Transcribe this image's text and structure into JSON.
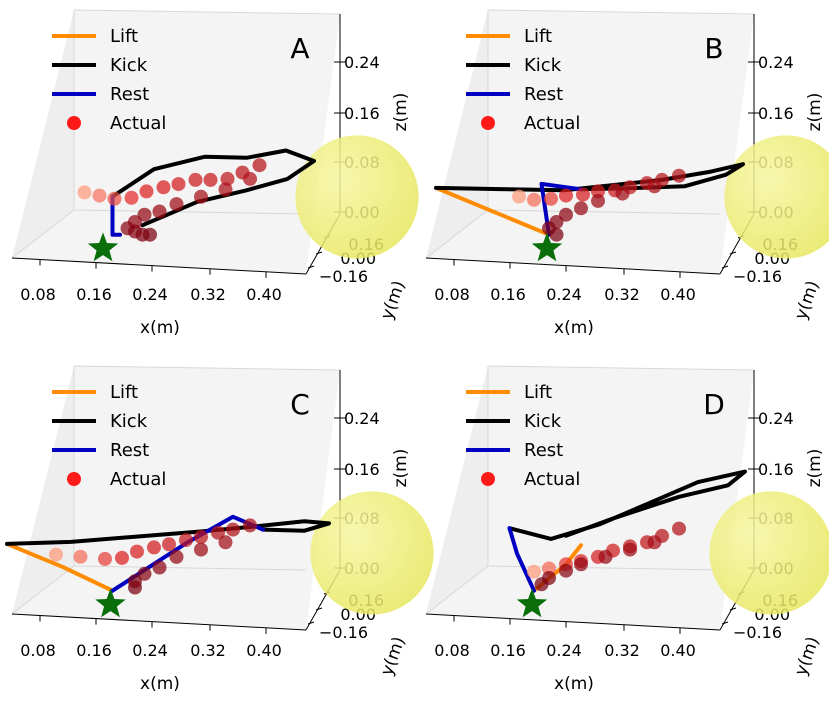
{
  "figure": {
    "panels": [
      "A",
      "B",
      "C",
      "D"
    ],
    "colors": {
      "lift": "#ff8c00",
      "kick": "#000000",
      "rest": "#0000c0",
      "actual": "#ff1a1a",
      "ball": "#e6e65c",
      "start": "#0a6e0a"
    }
  },
  "chart_data": [
    {
      "type": "scatter",
      "panel_letter": "A",
      "xlabel": "x(m)",
      "ylabel": "y(m)",
      "zlabel": "z(m)",
      "xticks": [
        "0.08",
        "0.16",
        "0.24",
        "0.32",
        "0.40"
      ],
      "yticks": [
        "0.16",
        "0.00",
        "−0.16"
      ],
      "zticks": [
        "0.24",
        "0.16",
        "0.08",
        "0.00"
      ],
      "legend": [
        "Lift",
        "Kick",
        "Rest",
        "Actual"
      ],
      "series": {
        "lift": [
          [
            0.2,
            -0.02,
            -0.02
          ],
          [
            0.2,
            -0.02,
            -0.02
          ]
        ],
        "kick": [
          [
            0.19,
            -0.02,
            0.04
          ],
          [
            0.24,
            0.0,
            0.08
          ],
          [
            0.3,
            0.03,
            0.095
          ],
          [
            0.35,
            0.05,
            0.09
          ],
          [
            0.4,
            0.06,
            0.1
          ],
          [
            0.44,
            0.05,
            0.085
          ],
          [
            0.41,
            0.03,
            0.06
          ],
          [
            0.36,
            0.01,
            0.045
          ],
          [
            0.3,
            -0.01,
            0.03
          ],
          [
            0.26,
            -0.02,
            0.01
          ],
          [
            0.23,
            -0.02,
            -0.005
          ]
        ],
        "rest": [
          [
            0.19,
            -0.02,
            0.04
          ],
          [
            0.19,
            -0.02,
            -0.02
          ],
          [
            0.2,
            -0.02,
            -0.02
          ]
        ],
        "actual": [
          [
            0.15,
            -0.01,
            0.045
          ],
          [
            0.17,
            -0.01,
            0.04
          ],
          [
            0.19,
            -0.01,
            0.035
          ],
          [
            0.21,
            0.0,
            0.035
          ],
          [
            0.23,
            0.0,
            0.045
          ],
          [
            0.25,
            0.01,
            0.05
          ],
          [
            0.27,
            0.01,
            0.055
          ],
          [
            0.29,
            0.02,
            0.06
          ],
          [
            0.31,
            0.02,
            0.06
          ],
          [
            0.33,
            0.03,
            0.06
          ],
          [
            0.35,
            0.03,
            0.07
          ],
          [
            0.37,
            0.04,
            0.08
          ],
          [
            0.36,
            0.03,
            0.06
          ],
          [
            0.33,
            0.02,
            0.045
          ],
          [
            0.3,
            0.01,
            0.035
          ],
          [
            0.27,
            0.0,
            0.025
          ],
          [
            0.25,
            -0.01,
            0.015
          ],
          [
            0.23,
            -0.01,
            0.01
          ],
          [
            0.22,
            -0.02,
            0.0
          ],
          [
            0.21,
            -0.02,
            -0.01
          ],
          [
            0.22,
            -0.02,
            -0.015
          ],
          [
            0.23,
            -0.02,
            -0.02
          ],
          [
            0.24,
            -0.02,
            -0.02
          ]
        ]
      },
      "ball": {
        "center": [
          0.5,
          0.04,
          0.03
        ],
        "radius": 0.11
      },
      "start": [
        0.18,
        -0.03,
        -0.04
      ]
    },
    {
      "type": "scatter",
      "panel_letter": "B",
      "xlabel": "x(m)",
      "ylabel": "y(m)",
      "zlabel": "z(m)",
      "xticks": [
        "0.08",
        "0.16",
        "0.24",
        "0.32",
        "0.40"
      ],
      "yticks": [
        "0.16",
        "0.00",
        "−0.16"
      ],
      "zticks": [
        "0.24",
        "0.16",
        "0.08",
        "0.00"
      ],
      "legend": [
        "Lift",
        "Kick",
        "Rest",
        "Actual"
      ],
      "series": {
        "lift": [
          [
            0.22,
            -0.02,
            -0.02
          ],
          [
            0.15,
            -0.04,
            0.02
          ],
          [
            0.08,
            -0.06,
            0.06
          ]
        ],
        "kick": [
          [
            0.08,
            -0.06,
            0.06
          ],
          [
            0.16,
            -0.04,
            0.055
          ],
          [
            0.24,
            -0.02,
            0.05
          ],
          [
            0.3,
            0.0,
            0.055
          ],
          [
            0.36,
            0.02,
            0.06
          ],
          [
            0.42,
            0.04,
            0.07
          ],
          [
            0.46,
            0.05,
            0.08
          ],
          [
            0.44,
            0.04,
            0.065
          ],
          [
            0.39,
            0.02,
            0.05
          ],
          [
            0.32,
            0.0,
            0.05
          ],
          [
            0.26,
            -0.01,
            0.05
          ]
        ],
        "rest": [
          [
            0.22,
            -0.02,
            -0.02
          ],
          [
            0.21,
            -0.02,
            0.06
          ],
          [
            0.26,
            -0.01,
            0.05
          ]
        ],
        "actual": [
          [
            0.18,
            -0.02,
            0.04
          ],
          [
            0.2,
            -0.02,
            0.035
          ],
          [
            0.22,
            -0.01,
            0.035
          ],
          [
            0.24,
            -0.01,
            0.04
          ],
          [
            0.26,
            0.0,
            0.04
          ],
          [
            0.28,
            0.0,
            0.045
          ],
          [
            0.3,
            0.01,
            0.045
          ],
          [
            0.32,
            0.01,
            0.05
          ],
          [
            0.34,
            0.02,
            0.055
          ],
          [
            0.36,
            0.02,
            0.06
          ],
          [
            0.38,
            0.03,
            0.065
          ],
          [
            0.35,
            0.02,
            0.05
          ],
          [
            0.31,
            0.01,
            0.04
          ],
          [
            0.28,
            0.0,
            0.03
          ],
          [
            0.26,
            -0.01,
            0.02
          ],
          [
            0.24,
            -0.01,
            0.01
          ],
          [
            0.23,
            -0.02,
            0.0
          ],
          [
            0.22,
            -0.02,
            -0.01
          ],
          [
            0.23,
            -0.02,
            -0.02
          ]
        ]
      },
      "ball": {
        "center": [
          0.52,
          0.04,
          0.03
        ],
        "radius": 0.11
      },
      "start": [
        0.22,
        -0.03,
        -0.04
      ]
    },
    {
      "type": "scatter",
      "panel_letter": "C",
      "xlabel": "x(m)",
      "ylabel": "y(m)",
      "zlabel": "z(m)",
      "xticks": [
        "0.08",
        "0.16",
        "0.24",
        "0.32",
        "0.40"
      ],
      "yticks": [
        "0.16",
        "0.00",
        "−0.16"
      ],
      "zticks": [
        "0.24",
        "0.16",
        "0.08",
        "0.00"
      ],
      "legend": [
        "Lift",
        "Kick",
        "Rest",
        "Actual"
      ],
      "series": {
        "lift": [
          [
            0.19,
            -0.02,
            -0.02
          ],
          [
            0.13,
            -0.04,
            0.02
          ],
          [
            0.06,
            -0.06,
            0.06
          ]
        ],
        "kick": [
          [
            0.06,
            -0.06,
            0.06
          ],
          [
            0.14,
            -0.04,
            0.06
          ],
          [
            0.22,
            -0.02,
            0.065
          ],
          [
            0.3,
            0.0,
            0.07
          ],
          [
            0.37,
            0.02,
            0.075
          ],
          [
            0.43,
            0.04,
            0.08
          ],
          [
            0.46,
            0.05,
            0.075
          ],
          [
            0.43,
            0.04,
            0.065
          ],
          [
            0.38,
            0.02,
            0.07
          ]
        ],
        "rest": [
          [
            0.19,
            -0.02,
            -0.02
          ],
          [
            0.28,
            0.01,
            0.05
          ],
          [
            0.34,
            0.02,
            0.09
          ],
          [
            0.38,
            0.02,
            0.07
          ]
        ],
        "actual": [
          [
            0.12,
            -0.04,
            0.04
          ],
          [
            0.15,
            -0.03,
            0.035
          ],
          [
            0.18,
            -0.02,
            0.03
          ],
          [
            0.2,
            -0.01,
            0.03
          ],
          [
            0.22,
            -0.01,
            0.04
          ],
          [
            0.24,
            0.0,
            0.045
          ],
          [
            0.26,
            0.0,
            0.05
          ],
          [
            0.28,
            0.01,
            0.055
          ],
          [
            0.3,
            0.01,
            0.06
          ],
          [
            0.32,
            0.02,
            0.065
          ],
          [
            0.34,
            0.02,
            0.07
          ],
          [
            0.36,
            0.03,
            0.075
          ],
          [
            0.33,
            0.02,
            0.05
          ],
          [
            0.3,
            0.01,
            0.04
          ],
          [
            0.27,
            0.0,
            0.03
          ],
          [
            0.25,
            -0.01,
            0.015
          ],
          [
            0.23,
            -0.01,
            0.005
          ],
          [
            0.22,
            -0.02,
            -0.005
          ],
          [
            0.22,
            -0.02,
            -0.015
          ]
        ]
      },
      "ball": {
        "center": [
          0.52,
          0.04,
          0.03
        ],
        "radius": 0.11
      },
      "start": [
        0.19,
        -0.03,
        -0.04
      ]
    },
    {
      "type": "scatter",
      "panel_letter": "D",
      "xlabel": "x(m)",
      "ylabel": "y(m)",
      "zlabel": "z(m)",
      "xticks": [
        "0.08",
        "0.16",
        "0.24",
        "0.32",
        "0.40"
      ],
      "yticks": [
        "0.16",
        "0.00",
        "−0.16"
      ],
      "zticks": [
        "0.24",
        "0.16",
        "0.08",
        "0.00"
      ],
      "legend": [
        "Lift",
        "Kick",
        "Rest",
        "Actual"
      ],
      "series": {
        "lift": [
          [
            0.2,
            -0.02,
            -0.02
          ],
          [
            0.24,
            -0.01,
            0.02
          ],
          [
            0.26,
            -0.01,
            0.05
          ]
        ],
        "kick": [
          [
            0.17,
            -0.03,
            0.08
          ],
          [
            0.22,
            -0.01,
            0.06
          ],
          [
            0.28,
            0.01,
            0.08
          ],
          [
            0.34,
            0.03,
            0.11
          ],
          [
            0.4,
            0.05,
            0.14
          ],
          [
            0.46,
            0.06,
            0.155
          ],
          [
            0.44,
            0.05,
            0.135
          ],
          [
            0.38,
            0.03,
            0.12
          ],
          [
            0.3,
            0.01,
            0.09
          ],
          [
            0.24,
            -0.01,
            0.065
          ]
        ],
        "rest": [
          [
            0.2,
            -0.02,
            -0.02
          ],
          [
            0.18,
            -0.03,
            0.04
          ],
          [
            0.17,
            -0.03,
            0.08
          ]
        ],
        "actual": [
          [
            0.2,
            -0.02,
            0.01
          ],
          [
            0.22,
            -0.02,
            0.015
          ],
          [
            0.24,
            -0.01,
            0.02
          ],
          [
            0.26,
            -0.01,
            0.025
          ],
          [
            0.28,
            0.0,
            0.03
          ],
          [
            0.3,
            0.0,
            0.04
          ],
          [
            0.32,
            0.01,
            0.045
          ],
          [
            0.34,
            0.02,
            0.05
          ],
          [
            0.36,
            0.02,
            0.06
          ],
          [
            0.38,
            0.03,
            0.07
          ],
          [
            0.35,
            0.02,
            0.05
          ],
          [
            0.32,
            0.01,
            0.04
          ],
          [
            0.29,
            0.0,
            0.03
          ],
          [
            0.26,
            -0.01,
            0.02
          ],
          [
            0.24,
            -0.01,
            0.01
          ],
          [
            0.22,
            -0.02,
            0.0
          ],
          [
            0.21,
            -0.02,
            -0.01
          ]
        ]
      },
      "ball": {
        "center": [
          0.5,
          0.04,
          0.03
        ],
        "radius": 0.11
      },
      "start": [
        0.2,
        -0.03,
        -0.04
      ]
    }
  ]
}
